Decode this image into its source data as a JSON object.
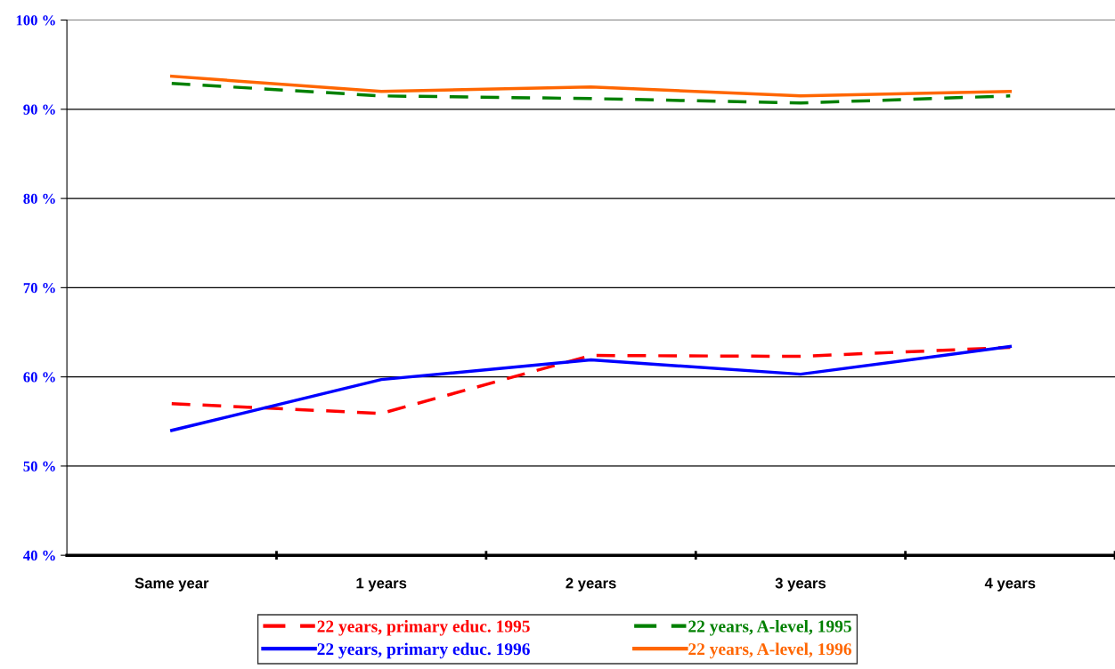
{
  "chart_data": {
    "type": "line",
    "categories": [
      "Same year",
      "1 years",
      "2 years",
      "3 years",
      "4 years"
    ],
    "series": [
      {
        "name": "22 years, primary educ. 1995",
        "color": "#ff0000",
        "line_style": "dashed",
        "values": [
          57.0,
          55.9,
          62.4,
          62.3,
          63.3
        ]
      },
      {
        "name": "22 years, primary educ. 1996",
        "color": "#0000ff",
        "line_style": "solid",
        "values": [
          54.0,
          59.7,
          61.9,
          60.3,
          63.4
        ]
      },
      {
        "name": "22 years, A-level, 1995",
        "color": "#008000",
        "line_style": "dashed",
        "values": [
          92.9,
          91.5,
          91.2,
          90.7,
          91.5
        ]
      },
      {
        "name": "22 years, A-level, 1996",
        "color": "#ff6600",
        "line_style": "solid",
        "values": [
          93.7,
          92.0,
          92.5,
          91.5,
          92.0
        ]
      }
    ],
    "ylim": [
      40,
      100
    ],
    "yticks": [
      {
        "value": 40,
        "label": "40 %"
      },
      {
        "value": 50,
        "label": "50 %"
      },
      {
        "value": 60,
        "label": "60 %"
      },
      {
        "value": 70,
        "label": "70 %"
      },
      {
        "value": 80,
        "label": "80 %"
      },
      {
        "value": 90,
        "label": "90 %"
      },
      {
        "value": 100,
        "label": "100 %"
      }
    ],
    "grid": "y",
    "legend": "bottom",
    "marker": "none"
  }
}
